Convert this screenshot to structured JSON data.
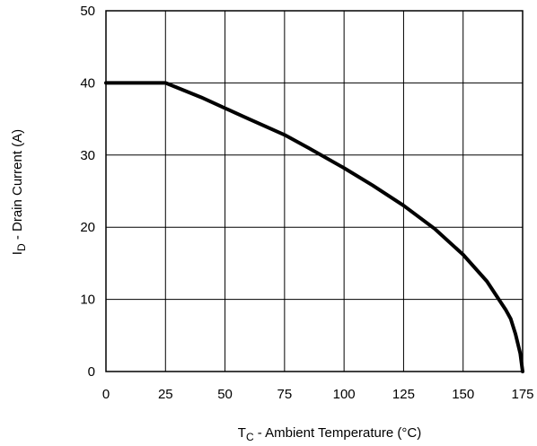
{
  "chart_data": {
    "type": "line",
    "xlabel": {
      "main": "T",
      "sub": "C",
      "rest": " - Ambient Temperature (°C)"
    },
    "ylabel": {
      "main": "I",
      "sub": "D",
      "rest": " - Drain Current (A)"
    },
    "xlim": [
      0,
      175
    ],
    "ylim": [
      0,
      50
    ],
    "xticks": [
      0,
      25,
      50,
      75,
      100,
      125,
      150,
      175
    ],
    "yticks": [
      0,
      10,
      20,
      30,
      40,
      50
    ],
    "grid": true,
    "line_color": "#000000",
    "series": [
      {
        "x": [
          0,
          25,
          40,
          50,
          60,
          75,
          85,
          100,
          112,
          125,
          138,
          150,
          160,
          165,
          168,
          170,
          172,
          174,
          175
        ],
        "y": [
          40,
          40,
          38,
          36.5,
          35,
          32.8,
          31,
          28.2,
          25.8,
          23,
          19.8,
          16.2,
          12.5,
          10,
          8.5,
          7.3,
          5.2,
          2.5,
          0
        ]
      }
    ]
  }
}
